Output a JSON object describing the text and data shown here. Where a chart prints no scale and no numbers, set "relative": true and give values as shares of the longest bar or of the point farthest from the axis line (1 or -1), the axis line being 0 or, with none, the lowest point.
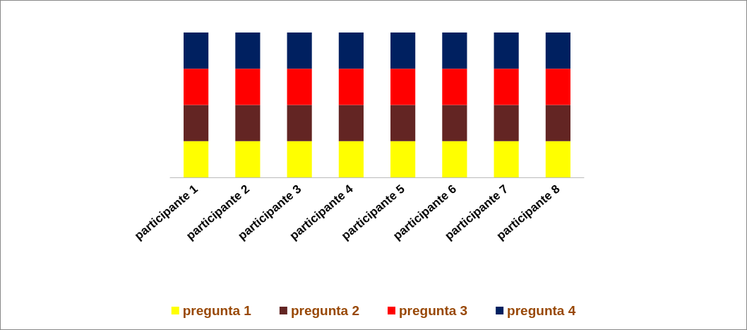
{
  "chart_data": {
    "type": "bar",
    "stacked": true,
    "relative": true,
    "legend": "bottom",
    "categories": [
      "participante 1",
      "participante 2",
      "participante 3",
      "participante 4",
      "participante 5",
      "participante 6",
      "participante 7",
      "participante 8"
    ],
    "series": [
      {
        "name": "pregunta 1",
        "color": "#ffff00",
        "values": [
          0.25,
          0.25,
          0.25,
          0.25,
          0.25,
          0.25,
          0.25,
          0.25
        ]
      },
      {
        "name": "pregunta 2",
        "color": "#632523",
        "values": [
          0.25,
          0.25,
          0.25,
          0.25,
          0.25,
          0.25,
          0.25,
          0.25
        ]
      },
      {
        "name": "pregunta 3",
        "color": "#ff0000",
        "values": [
          0.25,
          0.25,
          0.25,
          0.25,
          0.25,
          0.25,
          0.25,
          0.25
        ]
      },
      {
        "name": "pregunta 4",
        "color": "#002060",
        "values": [
          0.25,
          0.25,
          0.25,
          0.25,
          0.25,
          0.25,
          0.25,
          0.25
        ]
      }
    ]
  }
}
